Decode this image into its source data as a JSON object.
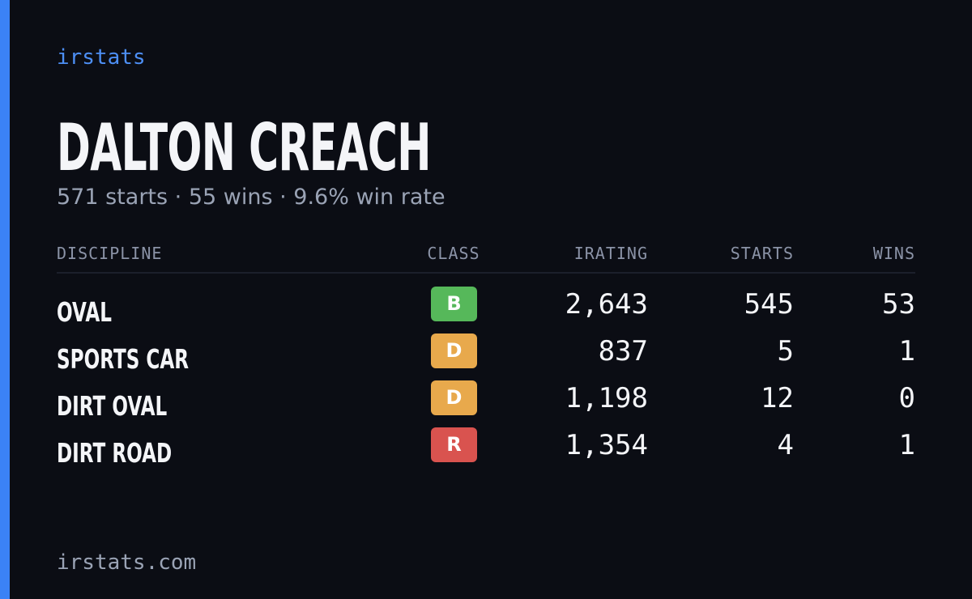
{
  "brand": "irstats",
  "driver": {
    "name": "DALTON CREACH",
    "summary": "571 starts · 55 wins · 9.6% win rate"
  },
  "table": {
    "headers": [
      "DISCIPLINE",
      "CLASS",
      "IRATING",
      "STARTS",
      "WINS"
    ],
    "rows": [
      [
        "OVAL",
        "B",
        "2,643",
        "545",
        "53"
      ],
      [
        "SPORTS CAR",
        "D",
        "837",
        "5",
        "1"
      ],
      [
        "DIRT OVAL",
        "D",
        "1,198",
        "12",
        "0"
      ],
      [
        "DIRT ROAD",
        "R",
        "1,354",
        "4",
        "1"
      ]
    ]
  },
  "footer": "irstats.com"
}
